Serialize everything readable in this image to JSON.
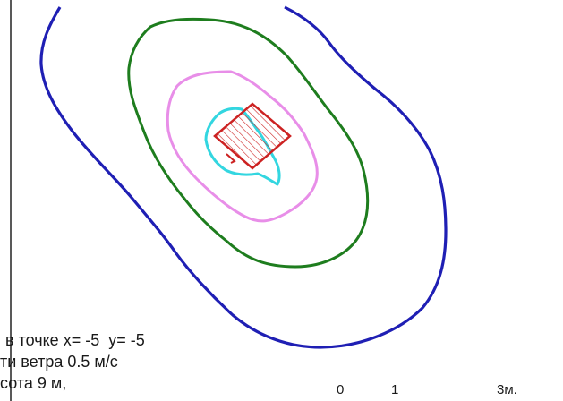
{
  "caption": {
    "lines": [
      "в точке x= -5  y= -5",
      "ти ветра 0.5 м/с",
      "сота 9 м,"
    ]
  },
  "scale_bar": {
    "labels": [
      "0",
      "1",
      "3м."
    ]
  },
  "isolines": [
    {
      "name": "outer",
      "color": "#1f1fb4"
    },
    {
      "name": "second",
      "color": "#1e7d1e"
    },
    {
      "name": "third",
      "color": "#e88ee8"
    },
    {
      "name": "inner",
      "color": "#33d6e0"
    }
  ],
  "source": {
    "outline_color": "#cc2222",
    "hatch_color": "#cc2222"
  }
}
